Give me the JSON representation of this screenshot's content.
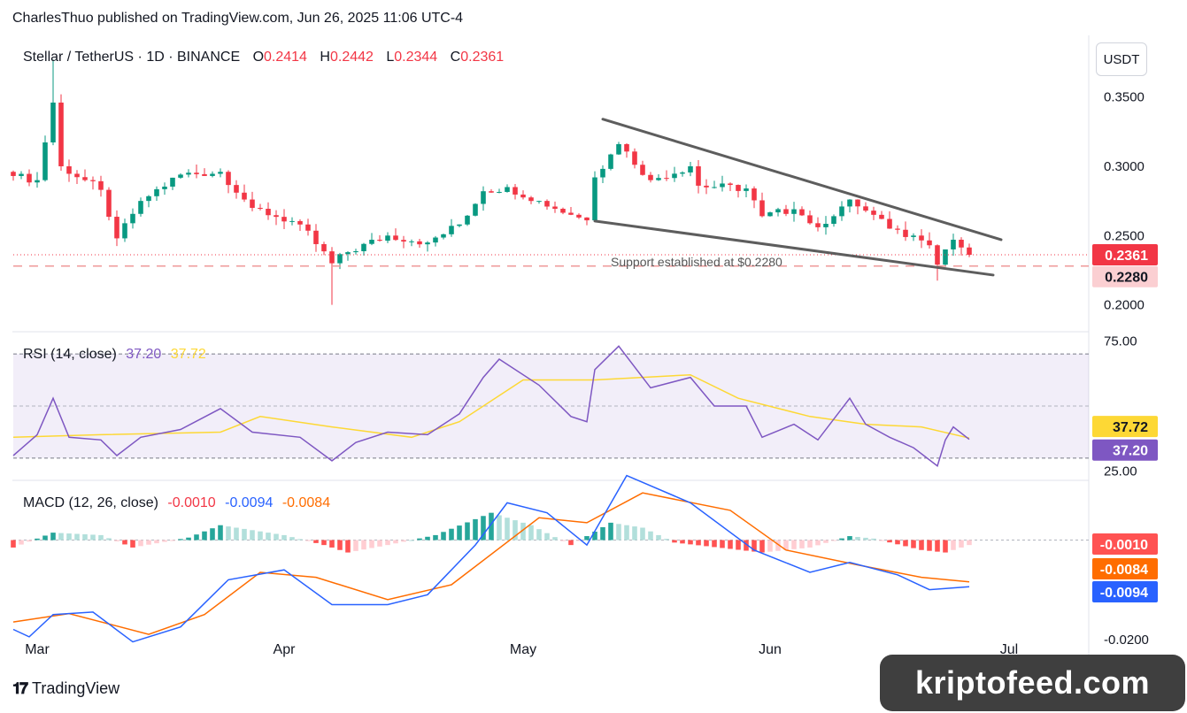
{
  "header": {
    "text": "CharlesThuo published on TradingView.com, Jun 26, 2025 11:06 UTC-4"
  },
  "unit_label": "USDT",
  "footer": {
    "brand": "TradingView",
    "logo_icon": "tradingview-logo-icon"
  },
  "watermark": {
    "text": "kriptofeed.com"
  },
  "colors": {
    "up": "#089981",
    "down": "#f23645",
    "rsi": "#7e57c2",
    "rsi_ma": "#fdd835",
    "macd": "#2962ff",
    "signal": "#ff6d00",
    "hist_up_strong": "#26a69a",
    "hist_up_weak": "#b2dfdb",
    "hist_down_strong": "#ff5252",
    "hist_down_weak": "#ffcdd2",
    "trendline": "#555555"
  },
  "chart_data": [
    {
      "type": "candlestick",
      "title_parts": {
        "symbol": "Stellar / TetherUS · 1D · BINANCE",
        "o_key": "O",
        "o": "0.2414",
        "h_key": "H",
        "h": "0.2442",
        "l_key": "L",
        "l": "0.2344",
        "c_key": "C",
        "c": "0.2361"
      },
      "x_ticks": [
        "Mar",
        "Apr",
        "May",
        "Jun",
        "Jul"
      ],
      "x_tick_dates": [
        "2025-03-01",
        "2025-04-01",
        "2025-05-01",
        "2025-06-01",
        "2025-07-01"
      ],
      "x_range": [
        "2025-02-26",
        "2025-07-11"
      ],
      "y_ticks": [
        "0.3500",
        "0.3000",
        "0.2500",
        "0.2000"
      ],
      "ylim": [
        0.1825,
        0.3945
      ],
      "annotation": "Support established at $0.2280",
      "price_labels": {
        "last": "0.2361",
        "support": "0.2280"
      },
      "support_level": 0.228,
      "current_price": 0.2361,
      "trendlines": [
        {
          "name": "upper",
          "from": [
            "2025-05-11",
            0.334
          ],
          "to": [
            "2025-06-30",
            0.247
          ]
        },
        {
          "name": "lower",
          "from": [
            "2025-05-10",
            0.2605
          ],
          "to": [
            "2025-06-29",
            0.2215
          ]
        }
      ],
      "key_closes": [
        [
          "2025-02-26",
          0.293
        ],
        [
          "2025-03-01",
          0.29
        ],
        [
          "2025-03-03",
          0.346
        ],
        [
          "2025-03-04",
          0.3
        ],
        [
          "2025-03-09",
          0.283
        ],
        [
          "2025-03-11",
          0.248
        ],
        [
          "2025-03-14",
          0.275
        ],
        [
          "2025-03-19",
          0.294
        ],
        [
          "2025-03-24",
          0.296
        ],
        [
          "2025-03-28",
          0.27
        ],
        [
          "2025-04-03",
          0.258
        ],
        [
          "2025-04-07",
          0.23
        ],
        [
          "2025-04-09",
          0.238
        ],
        [
          "2025-04-14",
          0.25
        ],
        [
          "2025-04-19",
          0.245
        ],
        [
          "2025-04-23",
          0.258
        ],
        [
          "2025-04-26",
          0.282
        ],
        [
          "2025-04-29",
          0.285
        ],
        [
          "2025-05-03",
          0.275
        ],
        [
          "2025-05-07",
          0.265
        ],
        [
          "2025-05-09",
          0.261
        ],
        [
          "2025-05-10",
          0.292
        ],
        [
          "2025-05-13",
          0.316
        ],
        [
          "2025-05-17",
          0.29
        ],
        [
          "2025-05-22",
          0.3
        ],
        [
          "2025-05-23",
          0.286
        ],
        [
          "2025-05-29",
          0.284
        ],
        [
          "2025-05-31",
          0.264
        ],
        [
          "2025-06-04",
          0.269
        ],
        [
          "2025-06-07",
          0.256
        ],
        [
          "2025-06-11",
          0.276
        ],
        [
          "2025-06-13",
          0.268
        ],
        [
          "2025-06-16",
          0.255
        ],
        [
          "2025-06-19",
          0.25
        ],
        [
          "2025-06-21",
          0.243
        ],
        [
          "2025-06-22",
          0.229
        ],
        [
          "2025-06-23",
          0.24
        ],
        [
          "2025-06-24",
          0.247
        ],
        [
          "2025-06-25",
          0.2414
        ],
        [
          "2025-06-26",
          0.2361
        ]
      ]
    },
    {
      "type": "line",
      "title_parts": {
        "name": "RSI (14, close)",
        "rsi": "37.20",
        "ma": "37.72"
      },
      "y_ticks": [
        "75.00",
        "25.00"
      ],
      "ylim": [
        22.5,
        77.5
      ],
      "band": [
        30,
        70
      ],
      "mid": 50,
      "last_labels": {
        "ma": "37.72",
        "rsi": "37.20"
      },
      "series": [
        {
          "name": "RSI",
          "values": [
            [
              "2025-02-26",
              31
            ],
            [
              "2025-03-01",
              39
            ],
            [
              "2025-03-03",
              53
            ],
            [
              "2025-03-05",
              38
            ],
            [
              "2025-03-09",
              37
            ],
            [
              "2025-03-11",
              31
            ],
            [
              "2025-03-14",
              38
            ],
            [
              "2025-03-19",
              41
            ],
            [
              "2025-03-24",
              49
            ],
            [
              "2025-03-28",
              40
            ],
            [
              "2025-04-03",
              38
            ],
            [
              "2025-04-07",
              29
            ],
            [
              "2025-04-10",
              36
            ],
            [
              "2025-04-14",
              40
            ],
            [
              "2025-04-19",
              39
            ],
            [
              "2025-04-23",
              47
            ],
            [
              "2025-04-26",
              61
            ],
            [
              "2025-04-28",
              68
            ],
            [
              "2025-05-03",
              58
            ],
            [
              "2025-05-07",
              46
            ],
            [
              "2025-05-09",
              44
            ],
            [
              "2025-05-10",
              64
            ],
            [
              "2025-05-13",
              73
            ],
            [
              "2025-05-17",
              57
            ],
            [
              "2025-05-22",
              61
            ],
            [
              "2025-05-25",
              50
            ],
            [
              "2025-05-29",
              50
            ],
            [
              "2025-05-31",
              38
            ],
            [
              "2025-06-04",
              43
            ],
            [
              "2025-06-07",
              37
            ],
            [
              "2025-06-11",
              53
            ],
            [
              "2025-06-13",
              43
            ],
            [
              "2025-06-16",
              38
            ],
            [
              "2025-06-19",
              34
            ],
            [
              "2025-06-22",
              27
            ],
            [
              "2025-06-23",
              37
            ],
            [
              "2025-06-24",
              42
            ],
            [
              "2025-06-26",
              37.2
            ]
          ]
        },
        {
          "name": "RSI-based MA",
          "values": [
            [
              "2025-02-26",
              38
            ],
            [
              "2025-03-09",
              39
            ],
            [
              "2025-03-24",
              40
            ],
            [
              "2025-03-29",
              46
            ],
            [
              "2025-04-07",
              42
            ],
            [
              "2025-04-17",
              38
            ],
            [
              "2025-04-23",
              44
            ],
            [
              "2025-05-01",
              60
            ],
            [
              "2025-05-10",
              60
            ],
            [
              "2025-05-22",
              62
            ],
            [
              "2025-05-28",
              53
            ],
            [
              "2025-06-06",
              46
            ],
            [
              "2025-06-13",
              43
            ],
            [
              "2025-06-20",
              42
            ],
            [
              "2025-06-26",
              37.72
            ]
          ]
        }
      ]
    },
    {
      "type": "line",
      "title_parts": {
        "name": "MACD (12, 26, close)",
        "hist": "-0.0010",
        "macd": "-0.0094",
        "signal": "-0.0084"
      },
      "y_ticks": [
        "-0.0200"
      ],
      "ylim": [
        -0.0245,
        0.0115
      ],
      "last_labels": {
        "hist": "-0.0010",
        "signal": "-0.0084",
        "macd": "-0.0094"
      },
      "series": [
        {
          "name": "MACD",
          "values": [
            [
              "2025-02-26",
              -0.018
            ],
            [
              "2025-02-28",
              -0.0195
            ],
            [
              "2025-03-03",
              -0.015
            ],
            [
              "2025-03-08",
              -0.0145
            ],
            [
              "2025-03-13",
              -0.0205
            ],
            [
              "2025-03-19",
              -0.0175
            ],
            [
              "2025-03-25",
              -0.008
            ],
            [
              "2025-04-01",
              -0.006
            ],
            [
              "2025-04-07",
              -0.013
            ],
            [
              "2025-04-14",
              -0.013
            ],
            [
              "2025-04-19",
              -0.011
            ],
            [
              "2025-04-25",
              -0.001
            ],
            [
              "2025-04-29",
              0.0075
            ],
            [
              "2025-05-04",
              0.0055
            ],
            [
              "2025-05-09",
              -0.001
            ],
            [
              "2025-05-14",
              0.013
            ],
            [
              "2025-05-22",
              0.0075
            ],
            [
              "2025-05-30",
              -0.002
            ],
            [
              "2025-06-06",
              -0.0065
            ],
            [
              "2025-06-11",
              -0.0045
            ],
            [
              "2025-06-17",
              -0.007
            ],
            [
              "2025-06-21",
              -0.01
            ],
            [
              "2025-06-26",
              -0.0094
            ]
          ]
        },
        {
          "name": "Signal",
          "values": [
            [
              "2025-02-26",
              -0.0165
            ],
            [
              "2025-03-05",
              -0.0148
            ],
            [
              "2025-03-15",
              -0.019
            ],
            [
              "2025-03-22",
              -0.015
            ],
            [
              "2025-03-29",
              -0.0065
            ],
            [
              "2025-04-05",
              -0.0075
            ],
            [
              "2025-04-14",
              -0.012
            ],
            [
              "2025-04-22",
              -0.009
            ],
            [
              "2025-05-03",
              0.0045
            ],
            [
              "2025-05-09",
              0.0035
            ],
            [
              "2025-05-16",
              0.0095
            ],
            [
              "2025-05-27",
              0.006
            ],
            [
              "2025-06-03",
              -0.002
            ],
            [
              "2025-06-12",
              -0.005
            ],
            [
              "2025-06-20",
              -0.0075
            ],
            [
              "2025-06-26",
              -0.0084
            ]
          ]
        },
        {
          "name": "Histogram",
          "values": [
            [
              "2025-02-26",
              -0.0015
            ],
            [
              "2025-03-03",
              0.0015
            ],
            [
              "2025-03-09",
              0.001
            ],
            [
              "2025-03-13",
              -0.0015
            ],
            [
              "2025-03-20",
              0.0005
            ],
            [
              "2025-03-24",
              0.003
            ],
            [
              "2025-04-01",
              0.001
            ],
            [
              "2025-04-06",
              -0.001
            ],
            [
              "2025-04-09",
              -0.0025
            ],
            [
              "2025-04-14",
              -0.001
            ],
            [
              "2025-04-20",
              0.001
            ],
            [
              "2025-04-27",
              0.0055
            ],
            [
              "2025-05-02",
              0.003
            ],
            [
              "2025-05-07",
              -0.001
            ],
            [
              "2025-05-12",
              0.0035
            ],
            [
              "2025-05-16",
              0.0025
            ],
            [
              "2025-05-20",
              -0.0005
            ],
            [
              "2025-05-31",
              -0.0025
            ],
            [
              "2025-06-06",
              -0.0015
            ],
            [
              "2025-06-11",
              0.0008
            ],
            [
              "2025-06-14",
              0.0003
            ],
            [
              "2025-06-20",
              -0.002
            ],
            [
              "2025-06-23",
              -0.0025
            ],
            [
              "2025-06-26",
              -0.001
            ]
          ]
        }
      ]
    }
  ]
}
